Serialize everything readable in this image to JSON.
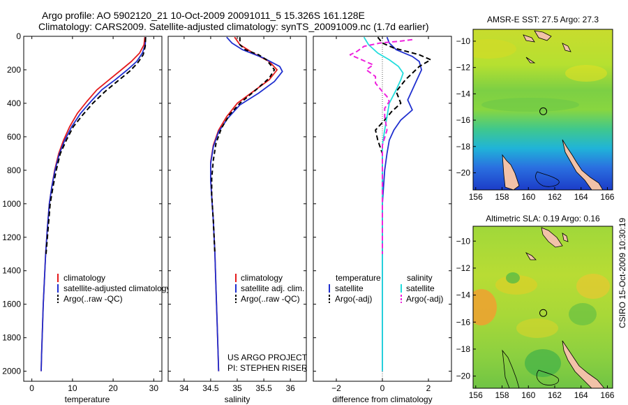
{
  "header": {
    "line1": "Argo profile: AO 5902120_21 10-Oct-2009 20091011_5 15.326S 161.128E",
    "line2": "Climatology: CARS2009. Satellite-adjusted climatology: synTS_20091009.nc (1.7d earlier)"
  },
  "side_label": "CSIRO 15-Oct-2009 10:30:19",
  "colors": {
    "climatology": "#e41a1c",
    "satellite": "#1f2fcf",
    "argo": "#000000",
    "salinity_satellite": "#22dddd",
    "salinity_argo": "#ee22dd"
  },
  "chart_data": [
    {
      "type": "line",
      "name": "temperature-profile",
      "xlabel": "temperature",
      "ylabel": "",
      "xlim": [
        -2,
        32
      ],
      "ylim": [
        2060,
        0
      ],
      "y_reversed": true,
      "xticks": [
        0,
        10,
        20,
        30
      ],
      "yticks": [
        0,
        200,
        400,
        600,
        800,
        1000,
        1200,
        1400,
        1600,
        1800,
        2000
      ],
      "legend": {
        "placement": "bottom-right",
        "entries": [
          "climatology",
          "satellite-adjusted climatology",
          "Argo(..raw -QC)"
        ]
      },
      "series": [
        {
          "name": "climatology",
          "color": "#e41a1c",
          "dash": "",
          "points": [
            [
              27.8,
              5
            ],
            [
              27.6,
              50
            ],
            [
              26.5,
              100
            ],
            [
              24.5,
              150
            ],
            [
              22,
              200
            ],
            [
              19,
              260
            ],
            [
              16,
              320
            ],
            [
              13.5,
              390
            ],
            [
              11.2,
              460
            ],
            [
              9.3,
              540
            ],
            [
              7.8,
              620
            ],
            [
              6.6,
              700
            ],
            [
              5.6,
              800
            ],
            [
              4.9,
              900
            ],
            [
              4.3,
              1000
            ],
            [
              3.8,
              1150
            ],
            [
              3.4,
              1300
            ],
            [
              3.1,
              1450
            ],
            [
              2.8,
              1600
            ],
            [
              2.6,
              1750
            ],
            [
              2.4,
              1900
            ],
            [
              2.3,
              2000
            ]
          ]
        },
        {
          "name": "satellite-adjusted climatology",
          "color": "#1f2fcf",
          "dash": "",
          "points": [
            [
              28,
              5
            ],
            [
              27.9,
              50
            ],
            [
              27.2,
              100
            ],
            [
              25.8,
              150
            ],
            [
              23.5,
              200
            ],
            [
              20.5,
              260
            ],
            [
              17.2,
              320
            ],
            [
              14.5,
              390
            ],
            [
              12,
              460
            ],
            [
              9.8,
              540
            ],
            [
              8.1,
              620
            ],
            [
              6.8,
              700
            ],
            [
              5.7,
              800
            ],
            [
              4.9,
              900
            ],
            [
              4.3,
              1000
            ],
            [
              3.8,
              1150
            ],
            [
              3.4,
              1300
            ],
            [
              3.1,
              1450
            ],
            [
              2.8,
              1600
            ],
            [
              2.6,
              1750
            ],
            [
              2.4,
              1900
            ],
            [
              2.3,
              2000
            ]
          ]
        },
        {
          "name": "Argo(..raw -QC)",
          "color": "#000000",
          "dash": "7,4",
          "points": [
            [
              28,
              5
            ],
            [
              27.9,
              60
            ],
            [
              27.4,
              110
            ],
            [
              26,
              160
            ],
            [
              24,
              210
            ],
            [
              21,
              270
            ],
            [
              18,
              330
            ],
            [
              15,
              400
            ],
            [
              12.5,
              470
            ],
            [
              10.2,
              540
            ],
            [
              8.5,
              620
            ],
            [
              7,
              700
            ],
            [
              6,
              800
            ],
            [
              5.2,
              900
            ],
            [
              4.5,
              1000
            ],
            [
              4,
              1150
            ],
            [
              3.5,
              1300
            ]
          ]
        }
      ]
    },
    {
      "type": "line",
      "name": "salinity-profile",
      "xlabel": "salinity",
      "ylabel": "",
      "xlim": [
        33.7,
        36.3
      ],
      "ylim": [
        2060,
        0
      ],
      "y_reversed": true,
      "xticks": [
        34,
        34.5,
        35,
        35.5,
        36
      ],
      "yticks": [],
      "legend": {
        "placement": "bottom-right",
        "entries": [
          "climatology",
          "satellite adj. clim.",
          "Argo(..raw -QC)"
        ]
      },
      "annotation": [
        "US ARGO PROJECT",
        "PI: STEPHEN RISER"
      ],
      "series": [
        {
          "name": "climatology",
          "color": "#e41a1c",
          "dash": "",
          "points": [
            [
              34.95,
              5
            ],
            [
              35.05,
              50
            ],
            [
              35.3,
              100
            ],
            [
              35.6,
              150
            ],
            [
              35.75,
              200
            ],
            [
              35.6,
              260
            ],
            [
              35.3,
              330
            ],
            [
              35,
              400
            ],
            [
              34.8,
              480
            ],
            [
              34.65,
              560
            ],
            [
              34.55,
              650
            ],
            [
              34.5,
              750
            ],
            [
              34.5,
              850
            ],
            [
              34.52,
              950
            ],
            [
              34.55,
              1100
            ],
            [
              34.58,
              1300
            ],
            [
              34.6,
              1500
            ],
            [
              34.62,
              1700
            ],
            [
              34.64,
              1900
            ],
            [
              34.65,
              2000
            ]
          ]
        },
        {
          "name": "satellite adj. clim.",
          "color": "#1f2fcf",
          "dash": "",
          "points": [
            [
              34.8,
              5
            ],
            [
              34.9,
              40
            ],
            [
              35.1,
              80
            ],
            [
              35.5,
              130
            ],
            [
              35.8,
              180
            ],
            [
              35.85,
              210
            ],
            [
              35.7,
              270
            ],
            [
              35.4,
              340
            ],
            [
              35.05,
              410
            ],
            [
              34.82,
              490
            ],
            [
              34.65,
              570
            ],
            [
              34.55,
              660
            ],
            [
              34.5,
              760
            ],
            [
              34.5,
              860
            ],
            [
              34.52,
              960
            ],
            [
              34.55,
              1100
            ],
            [
              34.58,
              1300
            ],
            [
              34.6,
              1500
            ],
            [
              34.62,
              1700
            ],
            [
              34.64,
              1900
            ],
            [
              34.65,
              2000
            ]
          ]
        },
        {
          "name": "Argo(..raw -QC)",
          "color": "#000000",
          "dash": "6,4",
          "points": [
            [
              35.05,
              5
            ],
            [
              35.05,
              50
            ],
            [
              35.15,
              80
            ],
            [
              35.4,
              110
            ],
            [
              35.55,
              140
            ],
            [
              35.6,
              160
            ],
            [
              35.7,
              200
            ],
            [
              35.6,
              250
            ],
            [
              35.35,
              320
            ],
            [
              35.05,
              400
            ],
            [
              34.85,
              470
            ],
            [
              34.7,
              550
            ],
            [
              34.6,
              640
            ],
            [
              34.55,
              740
            ],
            [
              34.52,
              850
            ],
            [
              34.52,
              950
            ],
            [
              34.55,
              1100
            ],
            [
              34.58,
              1300
            ]
          ]
        }
      ]
    },
    {
      "type": "line",
      "name": "difference-profile",
      "xlabel": "difference from climatology",
      "ylabel": "",
      "xlim": [
        -3,
        3
      ],
      "ylim": [
        2060,
        0
      ],
      "y_reversed": true,
      "xticks": [
        -2,
        0,
        2
      ],
      "yticks": [],
      "legend": {
        "placement": "bottom",
        "columns": [
          {
            "heading": "temperature",
            "entries": [
              "satellite",
              "Argo(-adj)"
            ]
          },
          {
            "heading": "salinity",
            "entries": [
              "satellite",
              "Argo(-adj)"
            ]
          }
        ]
      },
      "series": [
        {
          "name": "satellite",
          "group": "temperature",
          "color": "#1f2fcf",
          "dash": "",
          "points": [
            [
              0.2,
              5
            ],
            [
              0.3,
              40
            ],
            [
              0.6,
              80
            ],
            [
              1.3,
              120
            ],
            [
              1.6,
              150
            ],
            [
              1.7,
              200
            ],
            [
              1.5,
              260
            ],
            [
              1.3,
              320
            ],
            [
              1.1,
              380
            ],
            [
              1.3,
              440
            ],
            [
              0.8,
              500
            ],
            [
              0.5,
              560
            ],
            [
              0.3,
              620
            ],
            [
              0.2,
              700
            ],
            [
              0.1,
              800
            ],
            [
              0.05,
              900
            ],
            [
              0,
              1000
            ],
            [
              0,
              1300
            ],
            [
              0,
              1600
            ],
            [
              0,
              2000
            ]
          ]
        },
        {
          "name": "Argo(-adj)",
          "group": "temperature",
          "color": "#000000",
          "dash": "7,4",
          "points": [
            [
              -0.2,
              5
            ],
            [
              0,
              40
            ],
            [
              0.5,
              70
            ],
            [
              1.6,
              110
            ],
            [
              2.1,
              140
            ],
            [
              1.6,
              180
            ],
            [
              1.3,
              220
            ],
            [
              1,
              260
            ],
            [
              0.6,
              330
            ],
            [
              0.8,
              400
            ],
            [
              0.4,
              450
            ],
            [
              0.1,
              500
            ],
            [
              -0.3,
              560
            ],
            [
              -0.2,
              620
            ],
            [
              0,
              700
            ],
            [
              0,
              800
            ],
            [
              0,
              1000
            ],
            [
              0,
              1300
            ]
          ]
        },
        {
          "name": "satellite",
          "group": "salinity",
          "color": "#22dddd",
          "dash": "",
          "points": [
            [
              -0.8,
              5
            ],
            [
              -0.6,
              50
            ],
            [
              -0.2,
              100
            ],
            [
              0.3,
              140
            ],
            [
              0.7,
              180
            ],
            [
              0.9,
              220
            ],
            [
              0.8,
              260
            ],
            [
              0.6,
              320
            ],
            [
              0.3,
              400
            ],
            [
              0.2,
              480
            ],
            [
              0.1,
              560
            ],
            [
              0,
              650
            ],
            [
              0,
              800
            ],
            [
              0,
              1000
            ],
            [
              0,
              1300
            ],
            [
              0,
              1600
            ],
            [
              0,
              2000
            ]
          ]
        },
        {
          "name": "Argo(-adj)",
          "group": "salinity",
          "color": "#ee22dd",
          "dash": "7,4",
          "points": [
            [
              1.3,
              20
            ],
            [
              0.7,
              30
            ],
            [
              -0.1,
              40
            ],
            [
              -0.8,
              60
            ],
            [
              -1.1,
              90
            ],
            [
              -1.4,
              110
            ],
            [
              -0.9,
              140
            ],
            [
              -0.4,
              170
            ],
            [
              -0.7,
              200
            ],
            [
              -0.3,
              240
            ],
            [
              -0.3,
              280
            ],
            [
              0,
              330
            ],
            [
              0.2,
              360
            ],
            [
              0.3,
              390
            ],
            [
              0.1,
              430
            ],
            [
              0.1,
              480
            ],
            [
              0.2,
              560
            ],
            [
              0,
              650
            ],
            [
              0,
              800
            ],
            [
              0,
              1000
            ],
            [
              0,
              1300
            ]
          ]
        }
      ]
    },
    {
      "type": "heatmap",
      "name": "sst-map",
      "title": "AMSR-E SST: 27.5 Argo: 27.3",
      "xlim": [
        155.8,
        166.4
      ],
      "ylim": [
        -21.3,
        -9.1
      ],
      "xticks": [
        156,
        158,
        160,
        162,
        164,
        166
      ],
      "yticks": [
        -10,
        -12,
        -14,
        -16,
        -18,
        -20
      ],
      "marker": {
        "lon": 161.128,
        "lat": -15.326
      }
    },
    {
      "type": "heatmap",
      "name": "sla-map",
      "title": "Altimetric SLA: 0.19 Argo: 0.16",
      "xlim": [
        155.8,
        166.4
      ],
      "ylim": [
        -20.9,
        -8.9
      ],
      "xticks": [
        156,
        158,
        160,
        162,
        164,
        166
      ],
      "yticks": [
        -10,
        -12,
        -14,
        -16,
        -18,
        -20
      ],
      "marker": {
        "lon": 161.128,
        "lat": -15.326
      }
    }
  ]
}
